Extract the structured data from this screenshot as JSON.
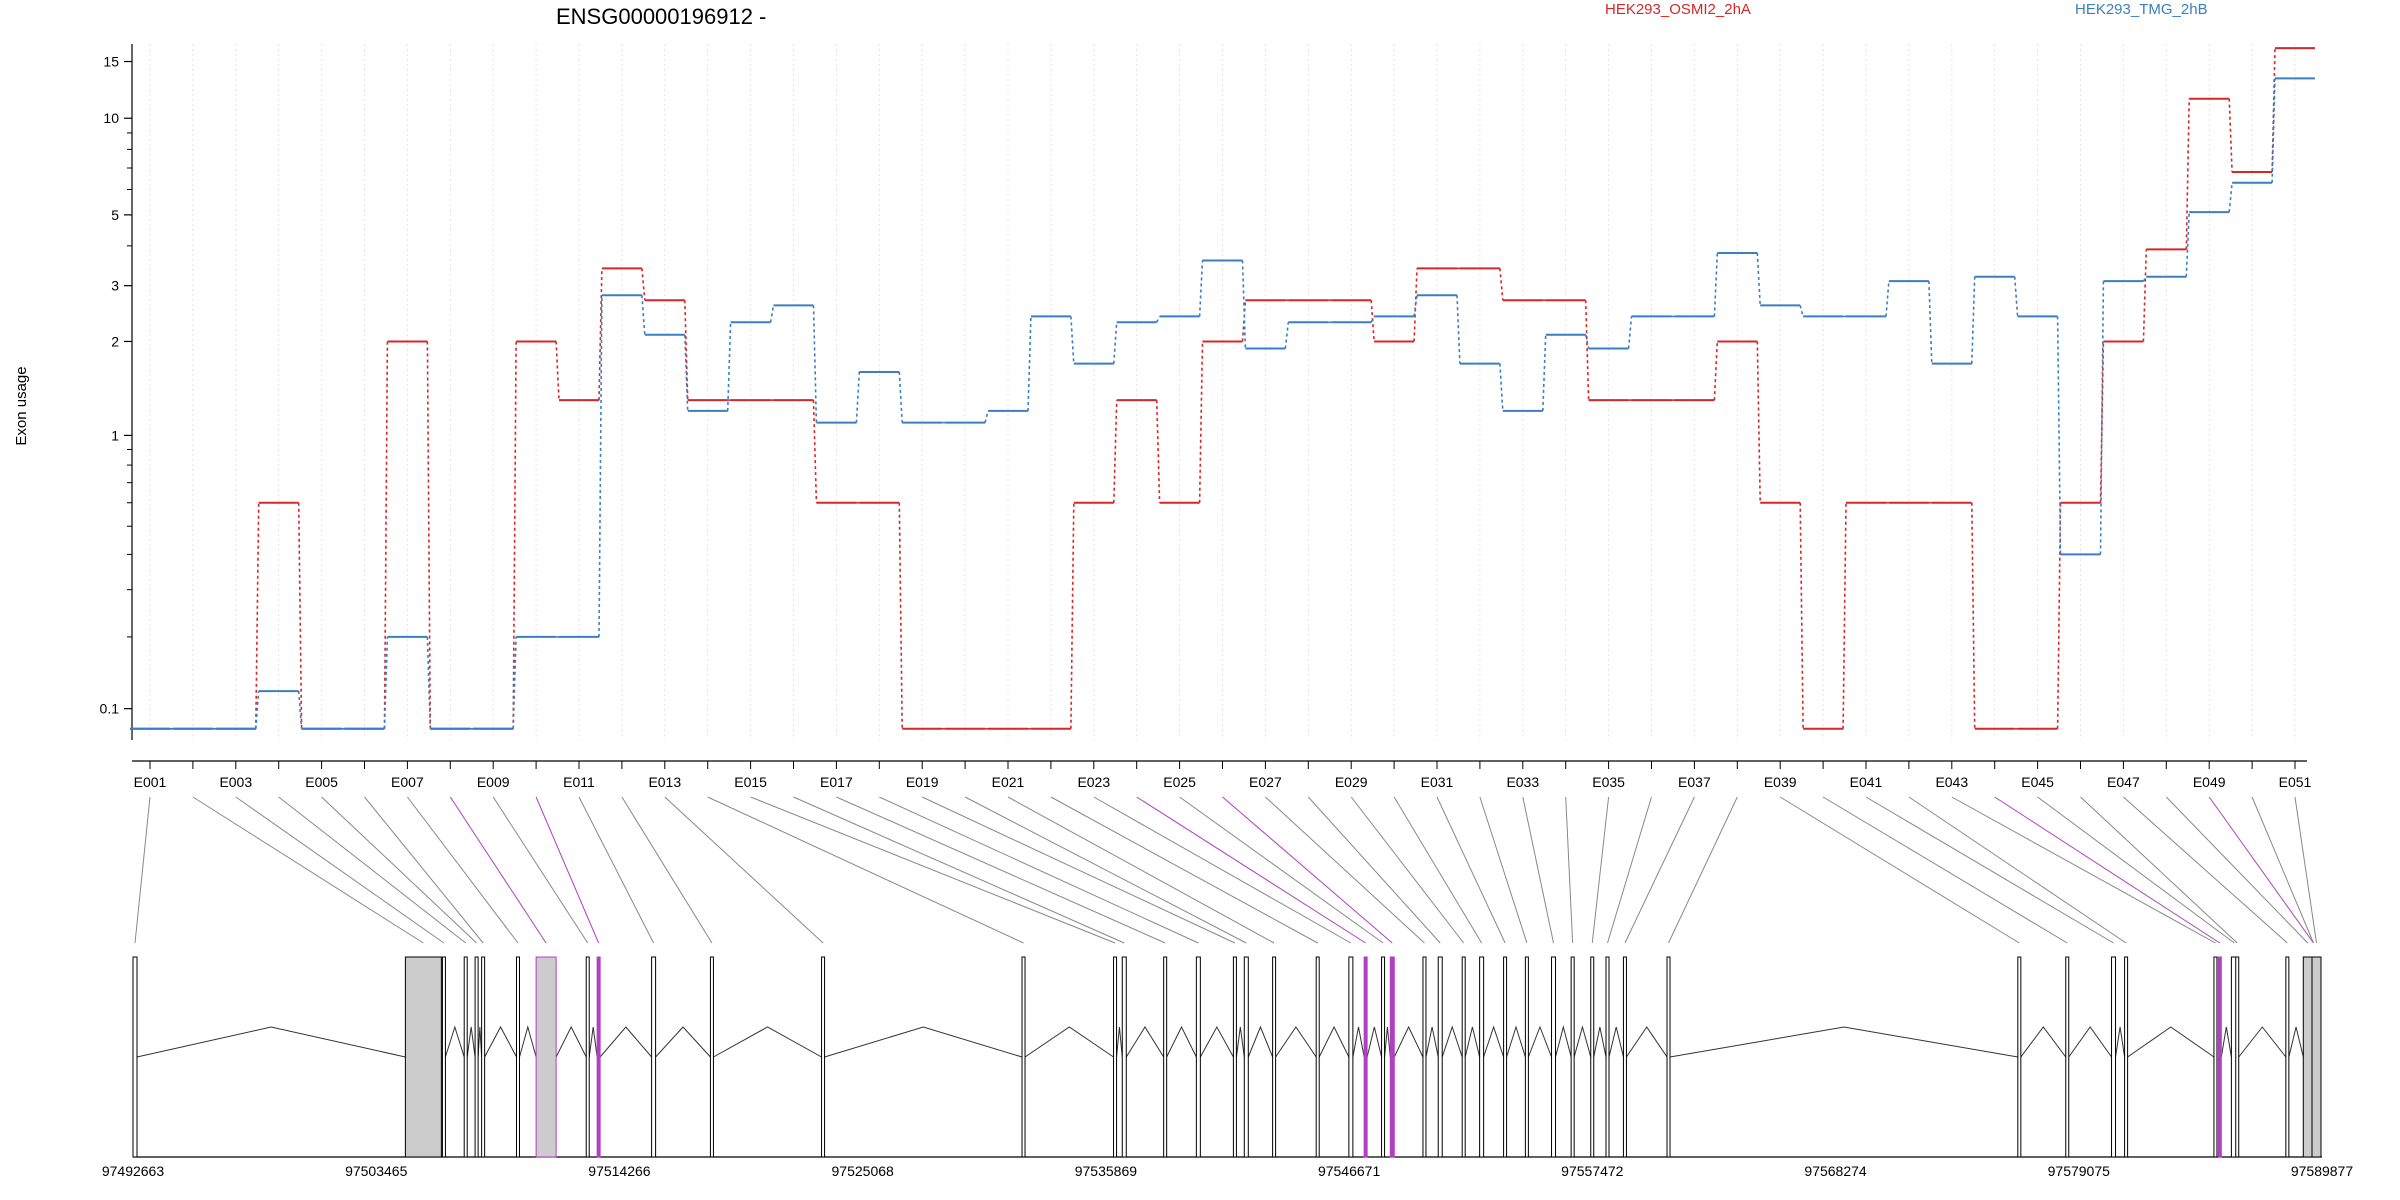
{
  "title": "ENSG00000196912 -",
  "legend": [
    {
      "name": "HEK293_OSMI2_2hA",
      "color": "#d62728"
    },
    {
      "name": "HEK293_TMG_2hB",
      "color": "#3a7fc1"
    }
  ],
  "colors": {
    "highlight": "#b040c0",
    "exon_fill": "#cccccc",
    "connector": "#888888"
  },
  "chart_data": {
    "type": "line",
    "title": "ENSG00000196912 -",
    "ylabel": "Exon usage",
    "xlabel": "",
    "yscale": "log(y+0.05)-like",
    "yticks": [
      0.1,
      1,
      2,
      3,
      5,
      10,
      15
    ],
    "ylim": [
      0.07,
      17
    ],
    "grid": "vertical-dotted",
    "legend_position": "top",
    "categories": [
      "E001",
      "E002",
      "E003",
      "E004",
      "E005",
      "E006",
      "E007",
      "E008",
      "E009",
      "E010",
      "E011",
      "E012",
      "E013",
      "E014",
      "E015",
      "E016",
      "E017",
      "E018",
      "E019",
      "E020",
      "E021",
      "E022",
      "E023",
      "E024",
      "E025",
      "E026",
      "E027",
      "E028",
      "E029",
      "E030",
      "E031",
      "E032",
      "E033",
      "E034",
      "E035",
      "E036",
      "E037",
      "E038",
      "E039",
      "E040",
      "E041",
      "E042",
      "E043",
      "E044",
      "E045",
      "E046",
      "E047",
      "E048",
      "E049",
      "E050",
      "E051"
    ],
    "xtick_labels": [
      "E001",
      "E003",
      "E005",
      "E007",
      "E009",
      "E011",
      "E013",
      "E015",
      "E017",
      "E019",
      "E021",
      "E023",
      "E025",
      "E027",
      "E029",
      "E031",
      "E033",
      "E035",
      "E037",
      "E039",
      "E041",
      "E043",
      "E045",
      "E047",
      "E049",
      "E051"
    ],
    "series": [
      {
        "name": "HEK293_OSMI2_2hA",
        "values": [
          0.08,
          0.08,
          0.08,
          0.6,
          0.08,
          0.08,
          2.0,
          0.08,
          0.08,
          2.0,
          1.3,
          3.4,
          2.7,
          1.3,
          1.3,
          1.3,
          0.6,
          0.6,
          0.08,
          0.08,
          0.08,
          0.08,
          0.6,
          1.3,
          0.6,
          2.0,
          2.7,
          2.7,
          2.7,
          2.0,
          3.4,
          3.4,
          2.7,
          2.7,
          1.3,
          1.3,
          1.3,
          2.0,
          0.6,
          0.08,
          0.6,
          0.6,
          0.6,
          0.08,
          0.08,
          0.6,
          2.0,
          3.9,
          11.5,
          6.8,
          16.5
        ]
      },
      {
        "name": "HEK293_TMG_2hB",
        "values": [
          0.08,
          0.08,
          0.08,
          0.12,
          0.08,
          0.08,
          0.2,
          0.08,
          0.08,
          0.2,
          0.2,
          2.8,
          2.1,
          1.2,
          2.3,
          2.6,
          1.1,
          1.6,
          1.1,
          1.1,
          1.2,
          2.4,
          1.7,
          2.3,
          2.4,
          3.6,
          1.9,
          2.3,
          2.3,
          2.4,
          2.8,
          1.7,
          1.2,
          2.1,
          1.9,
          2.4,
          2.4,
          3.8,
          2.6,
          2.4,
          2.4,
          3.1,
          1.7,
          3.2,
          2.4,
          0.4,
          3.1,
          3.2,
          5.1,
          6.3,
          13.3
        ]
      }
    ],
    "highlighted_exons": [
      "E008",
      "E010",
      "E024",
      "E026",
      "E044",
      "E049"
    ],
    "genomic_ticks": [
      "97492663",
      "97503465",
      "97514266",
      "97525068",
      "97535869",
      "97546671",
      "97557472",
      "97568274",
      "97579075",
      "97589877"
    ]
  }
}
